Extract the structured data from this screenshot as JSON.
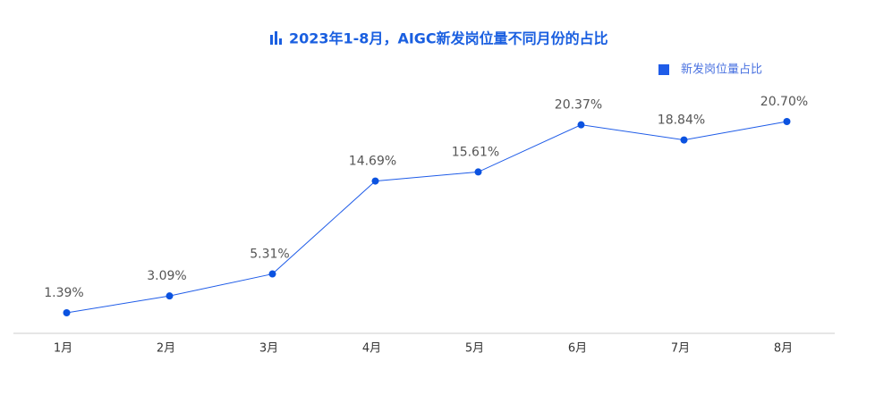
{
  "chart_data": {
    "type": "line",
    "title": "2023年1-8月，AIGC新发岗位量不同月份的占比",
    "categories": [
      "1月",
      "2月",
      "3月",
      "4月",
      "5月",
      "6月",
      "7月",
      "8月"
    ],
    "series": [
      {
        "name": "新发岗位量占比",
        "color": "#1f5ce8",
        "values": [
          1.39,
          3.09,
          5.31,
          14.69,
          15.61,
          20.37,
          18.84,
          20.7
        ],
        "value_labels": [
          "1.39%",
          "3.09%",
          "5.31%",
          "14.69%",
          "15.61%",
          "20.37%",
          "18.84%",
          "20.70%"
        ]
      }
    ],
    "legend": "top-right"
  }
}
